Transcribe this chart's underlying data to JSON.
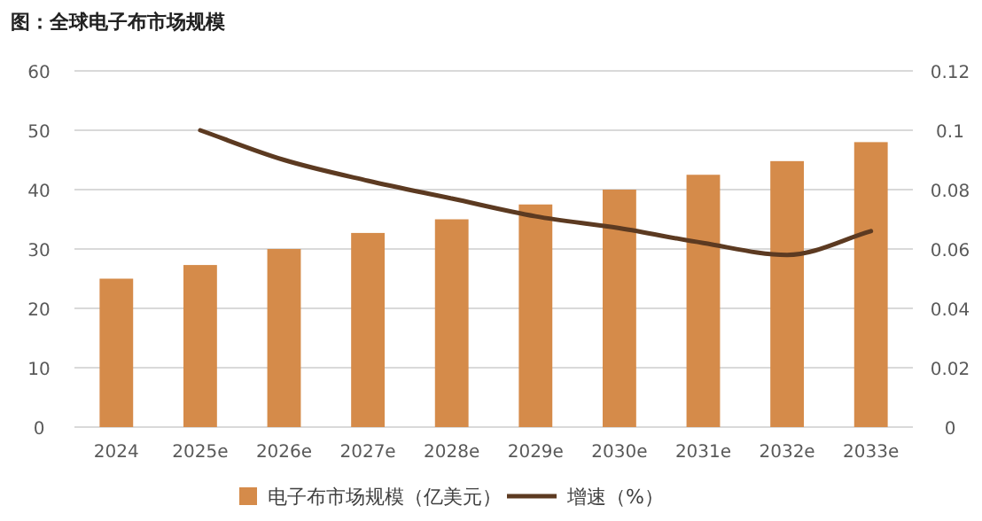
{
  "chart_data": {
    "type": "bar",
    "title": "图：全球电子布市场规模",
    "categories": [
      "2024",
      "2025e",
      "2026e",
      "2027e",
      "2028e",
      "2029e",
      "2030e",
      "2031e",
      "2032e",
      "2033e"
    ],
    "series": [
      {
        "name": "电子布市场规模（亿美元）",
        "color": "#d58b4a",
        "values": [
          25,
          27.3,
          30,
          32.7,
          35,
          37.5,
          40,
          42.5,
          44.8,
          48
        ]
      },
      {
        "name": "增速（%）",
        "type": "line",
        "axis": "y2",
        "color": "#5c3a21",
        "values": [
          null,
          0.1,
          0.09,
          0.083,
          0.077,
          0.071,
          0.067,
          0.062,
          0.058,
          0.066
        ]
      }
    ],
    "ylim": [
      0,
      60
    ],
    "yticks": [
      0,
      10,
      20,
      30,
      40,
      50,
      60
    ],
    "y2lim": [
      0,
      0.12
    ],
    "y2ticks": [
      0,
      0.02,
      0.04,
      0.06,
      0.08,
      0.1,
      0.12
    ],
    "grid": "y",
    "legend": "bottom",
    "line_style": "solid",
    "marker": "none"
  }
}
